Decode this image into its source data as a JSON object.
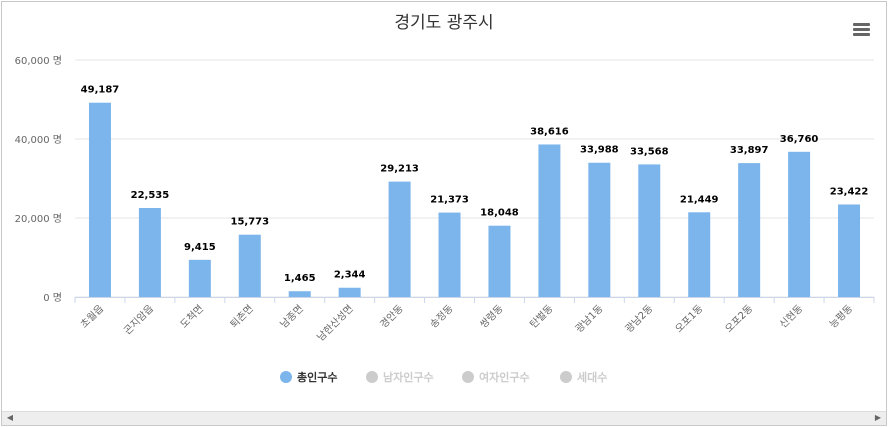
{
  "chart_data": {
    "type": "bar",
    "title": "경기도 광주시",
    "categories": [
      "초월읍",
      "곤지암읍",
      "도척면",
      "퇴촌면",
      "남종면",
      "남한산성면",
      "경안동",
      "송정동",
      "쌍령동",
      "탄벌동",
      "광남1동",
      "광남2동",
      "오포1동",
      "오포2동",
      "신현동",
      "능평동"
    ],
    "series": [
      {
        "name": "총인구수",
        "values": [
          49187,
          22535,
          9415,
          15773,
          1465,
          2344,
          29213,
          21373,
          18048,
          38616,
          33988,
          33568,
          21449,
          33897,
          36760,
          23422
        ]
      }
    ],
    "data_labels": [
      "49,187",
      "22,535",
      "9,415",
      "15,773",
      "1,465",
      "2,344",
      "29,213",
      "21,373",
      "18,048",
      "38,616",
      "33,988",
      "33,568",
      "21,449",
      "33,897",
      "36,760",
      "23,422"
    ],
    "yticks": [
      {
        "value": 0,
        "label": "0 명"
      },
      {
        "value": 20000,
        "label": "20,000 명"
      },
      {
        "value": 40000,
        "label": "40,000 명"
      },
      {
        "value": 60000,
        "label": "60,000 명"
      }
    ],
    "ylim": [
      0,
      60000
    ],
    "xlabel": "",
    "ylabel": "",
    "grid": true,
    "legend_placement": "bottom-center",
    "legend": [
      {
        "label": "총인구수",
        "active": true
      },
      {
        "label": "남자인구수",
        "active": false
      },
      {
        "label": "여자인구수",
        "active": false
      },
      {
        "label": "세대수",
        "active": false
      }
    ],
    "colors": {
      "bar": "#7cb5ec",
      "inactive": "#cccccc",
      "active_text": "#333333",
      "inactive_text": "#cccccc",
      "grid": "#e6e6e6"
    }
  },
  "ui": {
    "menu_icon": "hamburger-menu-icon",
    "scroll_left_icon": "scroll-left-arrow-icon",
    "scroll_right_icon": "scroll-right-arrow-icon"
  }
}
